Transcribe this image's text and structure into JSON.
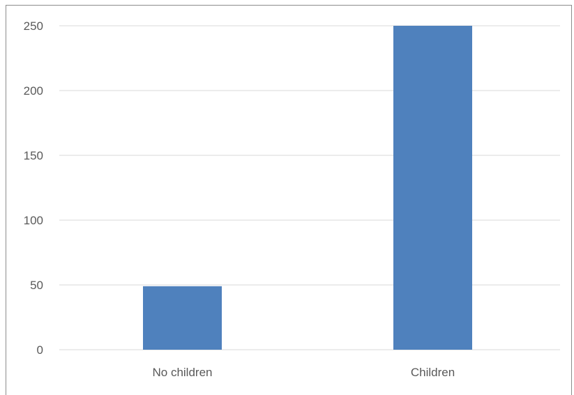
{
  "chart_data": {
    "type": "bar",
    "categories": [
      "No children",
      "Children"
    ],
    "values": [
      49,
      250
    ],
    "title": "",
    "xlabel": "",
    "ylabel": "",
    "ylim": [
      0,
      250
    ],
    "yticks": [
      "0",
      "50",
      "100",
      "150",
      "200",
      "250"
    ],
    "grid": true,
    "bar_color": "#4f81bd",
    "gridline_color": "#d9d9d9"
  }
}
